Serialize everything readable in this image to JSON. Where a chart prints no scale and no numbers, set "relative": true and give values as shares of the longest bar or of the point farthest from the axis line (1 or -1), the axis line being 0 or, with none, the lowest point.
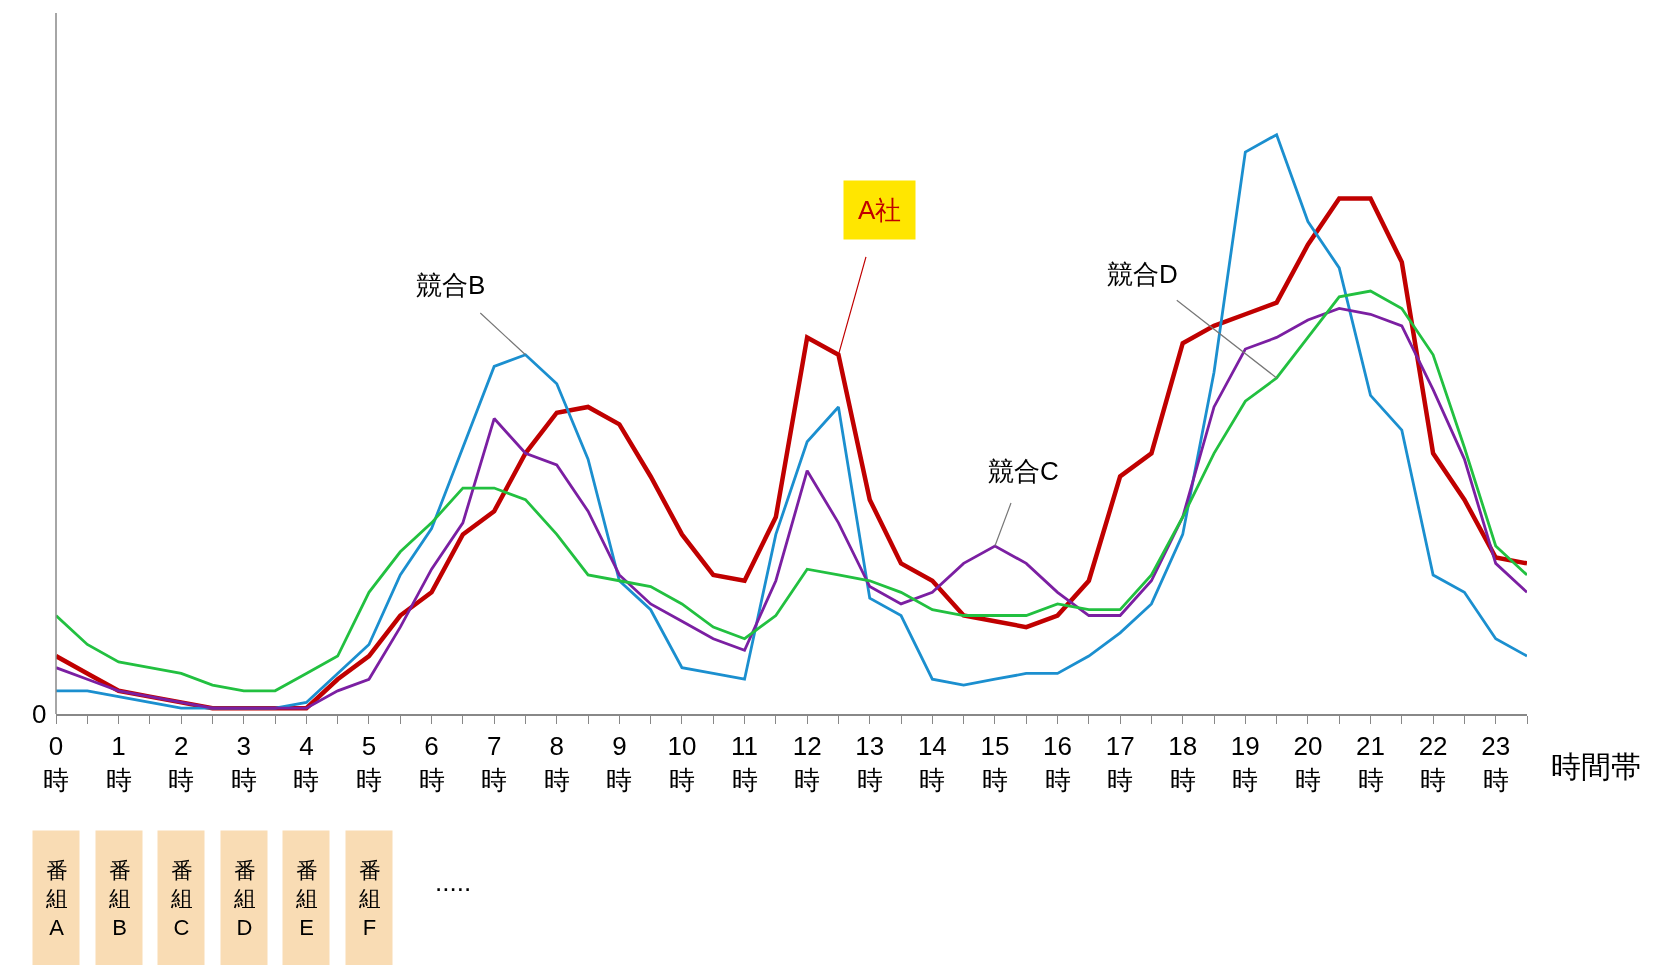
{
  "chart_data": {
    "type": "line",
    "relative": true,
    "xlabel": "時間帯",
    "legend": false,
    "grid": false,
    "marker": "none",
    "line_style": "solid",
    "x": [
      0,
      0.5,
      1,
      1.5,
      2,
      2.5,
      3,
      3.5,
      4,
      4.5,
      5,
      5.5,
      6,
      6.5,
      7,
      7.5,
      8,
      8.5,
      9,
      9.5,
      10,
      10.5,
      11,
      11.5,
      12,
      12.5,
      13,
      13.5,
      14,
      14.5,
      15,
      15.5,
      16,
      16.5,
      17,
      17.5,
      18,
      18.5,
      19,
      19.5,
      20,
      20.5,
      21,
      21.5,
      22,
      22.5,
      23,
      23.5
    ],
    "xlim": [
      0,
      23.5
    ],
    "xticks": [
      {
        "value": 0,
        "label": "0時"
      },
      {
        "value": 0.5,
        "label": null
      },
      {
        "value": 1,
        "label": "1時"
      },
      {
        "value": 1.5,
        "label": null
      },
      {
        "value": 2,
        "label": "2時"
      },
      {
        "value": 2.5,
        "label": null
      },
      {
        "value": 3,
        "label": "3時"
      },
      {
        "value": 3.5,
        "label": null
      },
      {
        "value": 4,
        "label": "4時"
      },
      {
        "value": 4.5,
        "label": null
      },
      {
        "value": 5,
        "label": "5時"
      },
      {
        "value": 5.5,
        "label": null
      },
      {
        "value": 6,
        "label": "6時"
      },
      {
        "value": 6.5,
        "label": null
      },
      {
        "value": 7,
        "label": "7時"
      },
      {
        "value": 7.5,
        "label": null
      },
      {
        "value": 8,
        "label": "8時"
      },
      {
        "value": 8.5,
        "label": null
      },
      {
        "value": 9,
        "label": "9時"
      },
      {
        "value": 9.5,
        "label": null
      },
      {
        "value": 10,
        "label": "10時"
      },
      {
        "value": 10.5,
        "label": null
      },
      {
        "value": 11,
        "label": "11時"
      },
      {
        "value": 11.5,
        "label": null
      },
      {
        "value": 12,
        "label": "12時"
      },
      {
        "value": 12.5,
        "label": null
      },
      {
        "value": 13,
        "label": "13時"
      },
      {
        "value": 13.5,
        "label": null
      },
      {
        "value": 14,
        "label": "14時"
      },
      {
        "value": 14.5,
        "label": null
      },
      {
        "value": 15,
        "label": "15時"
      },
      {
        "value": 15.5,
        "label": null
      },
      {
        "value": 16,
        "label": "16時"
      },
      {
        "value": 16.5,
        "label": null
      },
      {
        "value": 17,
        "label": "17時"
      },
      {
        "value": 17.5,
        "label": null
      },
      {
        "value": 18,
        "label": "18時"
      },
      {
        "value": 18.5,
        "label": null
      },
      {
        "value": 19,
        "label": "19時"
      },
      {
        "value": 19.5,
        "label": null
      },
      {
        "value": 20,
        "label": "20時"
      },
      {
        "value": 20.5,
        "label": null
      },
      {
        "value": 21,
        "label": "21時"
      },
      {
        "value": 21.5,
        "label": null
      },
      {
        "value": 22,
        "label": "22時"
      },
      {
        "value": 22.5,
        "label": null
      },
      {
        "value": 23,
        "label": "23時"
      },
      {
        "value": 23.5,
        "label": null
      }
    ],
    "series": [
      {
        "name": "A社",
        "color": "#c00000",
        "values": [
          0.1,
          0.07,
          0.04,
          0.03,
          0.02,
          0.01,
          0.01,
          0.01,
          0.01,
          0.06,
          0.1,
          0.17,
          0.21,
          0.31,
          0.35,
          0.45,
          0.52,
          0.53,
          0.5,
          0.41,
          0.31,
          0.24,
          0.23,
          0.34,
          0.65,
          0.62,
          0.37,
          0.26,
          0.23,
          0.17,
          0.16,
          0.15,
          0.17,
          0.23,
          0.41,
          0.45,
          0.64,
          0.67,
          0.69,
          0.71,
          0.81,
          0.89,
          0.89,
          0.78,
          0.45,
          0.37,
          0.27,
          0.26
        ]
      },
      {
        "name": "競合B",
        "color": "#1b8fcf",
        "values": [
          0.04,
          0.04,
          0.03,
          0.02,
          0.01,
          0.01,
          0.01,
          0.01,
          0.02,
          0.07,
          0.12,
          0.24,
          0.32,
          0.46,
          0.6,
          0.62,
          0.57,
          0.44,
          0.23,
          0.18,
          0.08,
          0.07,
          0.06,
          0.31,
          0.47,
          0.53,
          0.2,
          0.17,
          0.06,
          0.05,
          0.06,
          0.07,
          0.07,
          0.1,
          0.14,
          0.19,
          0.31,
          0.59,
          0.97,
          1,
          0.85,
          0.77,
          0.55,
          0.49,
          0.24,
          0.21,
          0.13,
          0.1
        ]
      },
      {
        "name": "競合C",
        "color": "#7b1fa2",
        "values": [
          0.08,
          0.06,
          0.04,
          0.03,
          0.02,
          0.01,
          0.01,
          0.01,
          0.01,
          0.04,
          0.06,
          0.15,
          0.25,
          0.33,
          0.51,
          0.45,
          0.43,
          0.35,
          0.24,
          0.19,
          0.16,
          0.13,
          0.11,
          0.23,
          0.42,
          0.33,
          0.22,
          0.19,
          0.21,
          0.26,
          0.29,
          0.26,
          0.21,
          0.17,
          0.17,
          0.23,
          0.34,
          0.53,
          0.63,
          0.65,
          0.68,
          0.7,
          0.69,
          0.67,
          0.56,
          0.44,
          0.26,
          0.21
        ]
      },
      {
        "name": "競合D",
        "color": "#22c040",
        "values": [
          0.17,
          0.12,
          0.09,
          0.08,
          0.07,
          0.05,
          0.04,
          0.04,
          0.07,
          0.1,
          0.21,
          0.28,
          0.33,
          0.39,
          0.39,
          0.37,
          0.31,
          0.24,
          0.23,
          0.22,
          0.19,
          0.15,
          0.13,
          0.17,
          0.25,
          0.24,
          0.23,
          0.21,
          0.18,
          0.17,
          0.17,
          0.17,
          0.19,
          0.18,
          0.18,
          0.24,
          0.34,
          0.45,
          0.54,
          0.58,
          0.65,
          0.72,
          0.73,
          0.7,
          0.62,
          0.46,
          0.29,
          0.24
        ]
      }
    ],
    "annotations": [
      "0",
      "番組A",
      "番組B",
      "番組C",
      "番組D",
      "番組E",
      "番組F",
      "....."
    ]
  }
}
